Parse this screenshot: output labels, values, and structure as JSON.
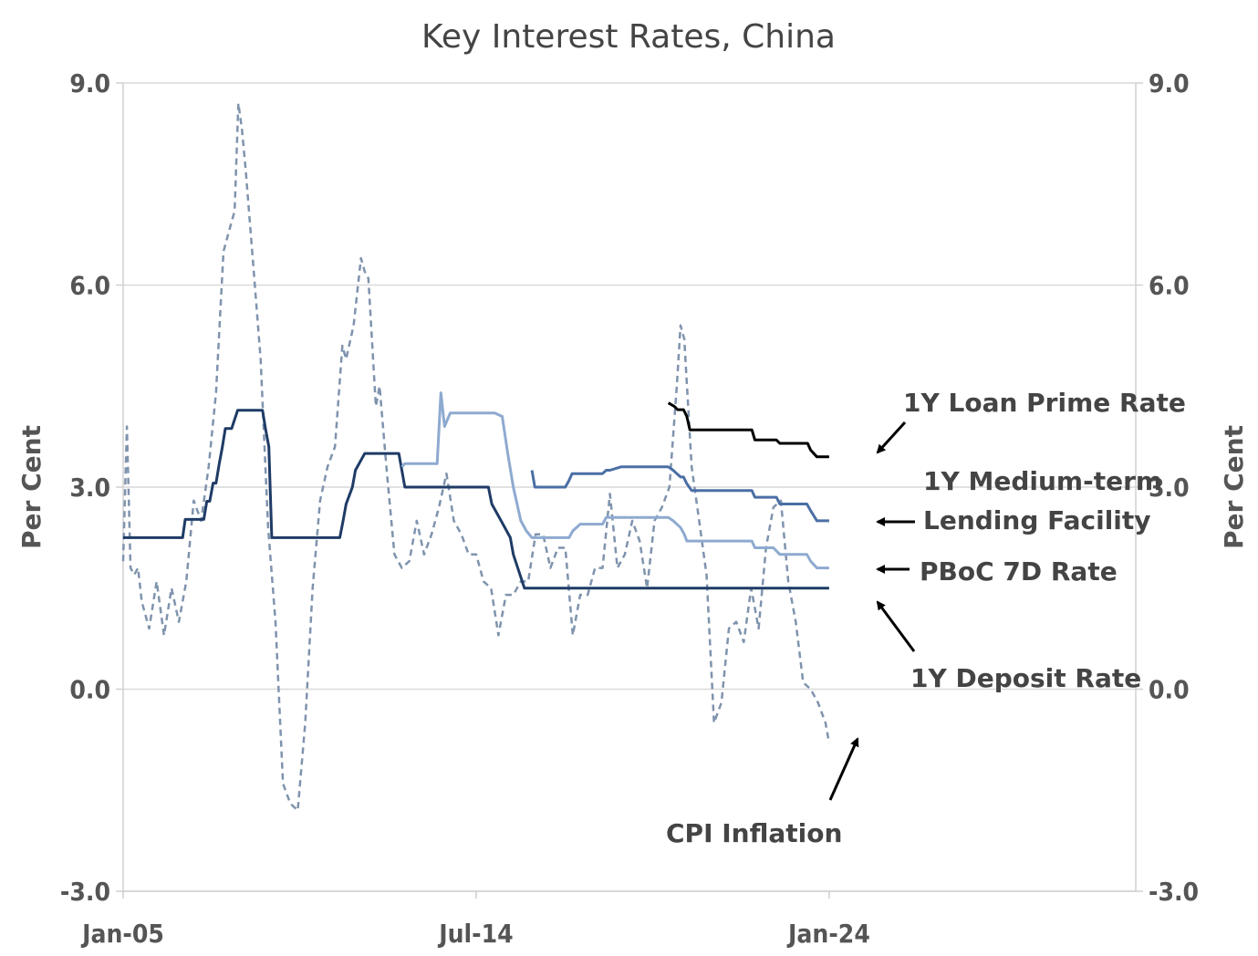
{
  "chart_data": {
    "type": "line",
    "title": "Key Interest Rates, China",
    "ylabel_left": "Per Cent",
    "ylabel_right": "Per Cent",
    "xlabel": "",
    "ylim": [
      -3.0,
      9.0
    ],
    "yticks": [
      "9.0",
      "6.0",
      "3.0",
      "0.0",
      "-3.0"
    ],
    "ytick_values": [
      9.0,
      6.0,
      3.0,
      0.0,
      -3.0
    ],
    "xlim": [
      2005.0,
      2032.25
    ],
    "xticks": [
      "Jan-05",
      "Jul-14",
      "Jan-24"
    ],
    "xtick_values": [
      2005.0,
      2014.5,
      2024.0
    ],
    "grid": "horizontal",
    "legend": "none",
    "series": [
      {
        "name": "1Y Loan Prime Rate",
        "color": "#000000",
        "style": "solid",
        "x": [
          2019.67,
          2019.83,
          2019.92,
          2020.0,
          2020.08,
          2020.17,
          2020.25,
          2020.33,
          2021.92,
          2022.0,
          2022.58,
          2022.67,
          2023.42,
          2023.5,
          2023.67,
          2024.0
        ],
        "y": [
          4.25,
          4.2,
          4.15,
          4.15,
          4.15,
          4.05,
          3.85,
          3.85,
          3.85,
          3.7,
          3.7,
          3.65,
          3.65,
          3.55,
          3.45,
          3.45
        ]
      },
      {
        "name": "1Y Medium-term Lending Facility",
        "color": "#4a6fa5",
        "style": "solid",
        "x": [
          2016.0,
          2016.08,
          2016.9,
          2017.0,
          2017.08,
          2017.9,
          2018.0,
          2018.1,
          2018.4,
          2018.5,
          2019.67,
          2019.8,
          2019.9,
          2020.0,
          2020.08,
          2020.17,
          2020.3,
          2021.92,
          2022.0,
          2022.58,
          2022.67,
          2023.4,
          2023.5,
          2023.67,
          2024.0
        ],
        "y": [
          3.25,
          3.0,
          3.0,
          3.1,
          3.2,
          3.2,
          3.25,
          3.25,
          3.3,
          3.3,
          3.3,
          3.25,
          3.2,
          3.15,
          3.15,
          3.05,
          2.95,
          2.95,
          2.85,
          2.85,
          2.75,
          2.75,
          2.65,
          2.5,
          2.5
        ]
      },
      {
        "name": "PBoC 7D Rate",
        "color": "#8eaad0",
        "style": "solid",
        "x": [
          2012.5,
          2012.58,
          2012.7,
          2013.2,
          2013.45,
          2013.55,
          2013.65,
          2013.8,
          2014.2,
          2014.6,
          2015.0,
          2015.2,
          2015.35,
          2015.5,
          2015.7,
          2015.85,
          2016.0,
          2016.5,
          2017.0,
          2017.1,
          2017.3,
          2017.9,
          2018.0,
          2019.5,
          2019.67,
          2019.8,
          2020.0,
          2020.1,
          2020.17,
          2020.3,
          2021.92,
          2022.0,
          2022.5,
          2022.67,
          2023.4,
          2023.5,
          2023.67,
          2024.0
        ],
        "y": [
          3.3,
          3.35,
          3.35,
          3.35,
          3.35,
          4.4,
          3.9,
          4.1,
          4.1,
          4.1,
          4.1,
          4.05,
          3.5,
          3.0,
          2.5,
          2.35,
          2.25,
          2.25,
          2.25,
          2.35,
          2.45,
          2.45,
          2.55,
          2.55,
          2.55,
          2.5,
          2.4,
          2.3,
          2.2,
          2.2,
          2.2,
          2.1,
          2.1,
          2.0,
          2.0,
          1.9,
          1.8,
          1.8
        ]
      },
      {
        "name": "1Y Deposit Rate",
        "color": "#1f3b66",
        "style": "solid",
        "x": [
          2005.0,
          2006.6,
          2006.67,
          2007.17,
          2007.25,
          2007.33,
          2007.42,
          2007.5,
          2007.58,
          2007.67,
          2007.75,
          2007.92,
          2008.08,
          2008.75,
          2008.83,
          2008.92,
          2009.0,
          2010.83,
          2010.92,
          2011.0,
          2011.17,
          2011.25,
          2011.5,
          2011.6,
          2012.42,
          2012.5,
          2012.58,
          2014.83,
          2014.92,
          2015.17,
          2015.42,
          2015.5,
          2015.65,
          2015.8,
          2016.0,
          2024.0
        ],
        "y": [
          2.25,
          2.25,
          2.52,
          2.52,
          2.79,
          2.79,
          3.06,
          3.06,
          3.33,
          3.6,
          3.87,
          3.87,
          4.14,
          4.14,
          3.87,
          3.6,
          2.25,
          2.25,
          2.5,
          2.75,
          3.0,
          3.25,
          3.5,
          3.5,
          3.5,
          3.25,
          3.0,
          3.0,
          2.75,
          2.5,
          2.25,
          2.0,
          1.75,
          1.5,
          1.5,
          1.5
        ]
      },
      {
        "name": "CPI Inflation",
        "color": "#7f93ad",
        "style": "dashed",
        "x": [
          2005.0,
          2005.1,
          2005.2,
          2005.3,
          2005.4,
          2005.5,
          2005.7,
          2005.9,
          2006.1,
          2006.3,
          2006.5,
          2006.7,
          2006.9,
          2007.1,
          2007.3,
          2007.5,
          2007.7,
          2007.9,
          2008.0,
          2008.1,
          2008.2,
          2008.3,
          2008.5,
          2008.7,
          2008.9,
          2009.1,
          2009.3,
          2009.5,
          2009.7,
          2009.9,
          2010.1,
          2010.3,
          2010.5,
          2010.7,
          2010.9,
          2011.0,
          2011.2,
          2011.4,
          2011.5,
          2011.6,
          2011.8,
          2011.9,
          2012.1,
          2012.3,
          2012.5,
          2012.7,
          2012.9,
          2013.1,
          2013.3,
          2013.5,
          2013.7,
          2013.9,
          2014.1,
          2014.3,
          2014.5,
          2014.7,
          2014.9,
          2015.1,
          2015.3,
          2015.5,
          2015.7,
          2015.9,
          2016.1,
          2016.3,
          2016.5,
          2016.7,
          2016.9,
          2017.1,
          2017.3,
          2017.5,
          2017.7,
          2017.9,
          2018.1,
          2018.3,
          2018.5,
          2018.7,
          2018.9,
          2019.1,
          2019.3,
          2019.5,
          2019.7,
          2019.9,
          2020.0,
          2020.1,
          2020.3,
          2020.5,
          2020.7,
          2020.9,
          2021.1,
          2021.3,
          2021.5,
          2021.7,
          2021.9,
          2022.1,
          2022.3,
          2022.5,
          2022.7,
          2022.9,
          2023.1,
          2023.3,
          2023.5,
          2023.7,
          2023.9,
          2024.0
        ],
        "y": [
          1.9,
          3.9,
          1.8,
          1.7,
          1.8,
          1.3,
          0.9,
          1.6,
          0.8,
          1.5,
          1.0,
          1.6,
          2.8,
          2.5,
          3.3,
          4.4,
          6.5,
          6.9,
          7.1,
          8.7,
          8.3,
          7.7,
          6.3,
          4.9,
          2.4,
          1.0,
          -1.4,
          -1.7,
          -1.8,
          -0.5,
          1.5,
          2.8,
          3.3,
          3.6,
          5.1,
          4.9,
          5.4,
          6.4,
          6.2,
          6.1,
          4.2,
          4.5,
          3.2,
          2.0,
          1.8,
          1.9,
          2.5,
          2.0,
          2.3,
          2.7,
          3.2,
          2.5,
          2.3,
          2.0,
          2.0,
          1.6,
          1.5,
          0.8,
          1.4,
          1.4,
          1.6,
          1.6,
          2.3,
          2.3,
          1.8,
          2.1,
          2.1,
          0.8,
          1.4,
          1.4,
          1.8,
          1.8,
          2.9,
          1.8,
          2.0,
          2.5,
          2.2,
          1.5,
          2.5,
          2.7,
          3.0,
          4.5,
          5.4,
          5.2,
          3.3,
          2.5,
          1.7,
          -0.5,
          -0.2,
          0.9,
          1.0,
          0.7,
          1.5,
          0.9,
          2.1,
          2.7,
          2.8,
          1.6,
          1.0,
          0.1,
          0.0,
          -0.2,
          -0.5,
          -0.8
        ]
      }
    ],
    "annotations": {
      "lpr": "1Y Loan Prime Rate",
      "mlf_line1": "1Y Medium-term",
      "mlf_line2": "Lending Facility",
      "pboc": "PBoC 7D Rate",
      "deposit": "1Y Deposit Rate",
      "cpi": "CPI  Inflation"
    }
  }
}
